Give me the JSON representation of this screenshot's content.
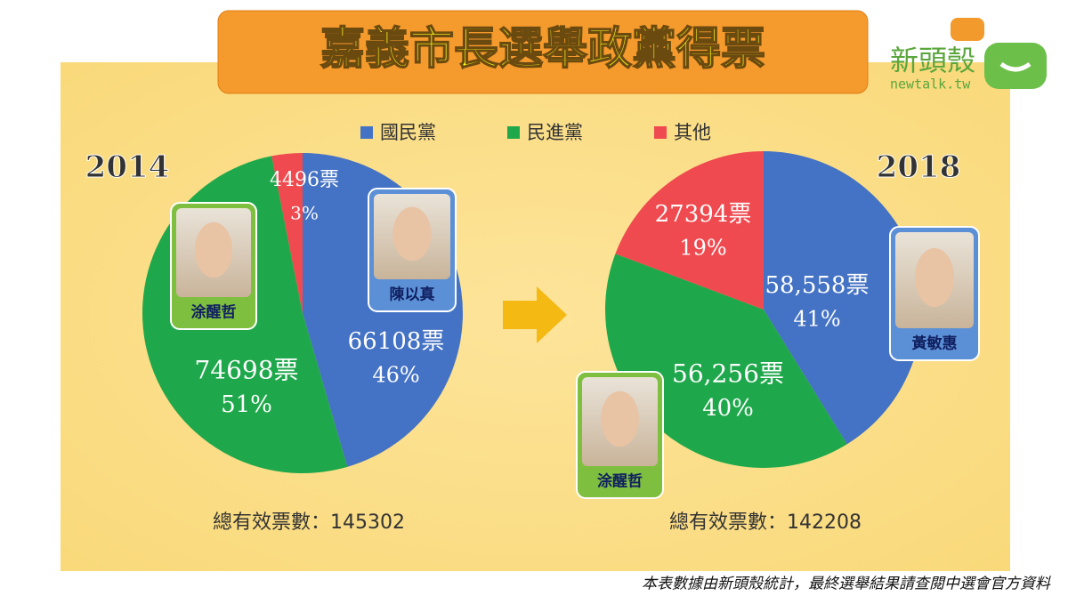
{
  "title": "嘉義市長選舉政黨得票",
  "logo": {
    "name": "新頭殼",
    "url": "newtalk.tw"
  },
  "chart_data": [
    {
      "type": "pie",
      "year": "2014",
      "categories": [
        "國民黨",
        "民進黨",
        "其他"
      ],
      "colors": [
        "#4472c4",
        "#1fa84b",
        "#ef4a4f"
      ],
      "values": [
        66108,
        74698,
        4496
      ],
      "value_labels": [
        "66108票",
        "74698票",
        "4496票"
      ],
      "shares": [
        46,
        51,
        3
      ],
      "share_labels": [
        "46%",
        "51%",
        "3%"
      ],
      "total_text": "總有效票數：145302"
    },
    {
      "type": "pie",
      "year": "2018",
      "categories": [
        "國民黨",
        "民進黨",
        "其他"
      ],
      "colors": [
        "#4472c4",
        "#1fa84b",
        "#ef4a4f"
      ],
      "values": [
        58558,
        56256,
        27394
      ],
      "value_labels": [
        "58,558票",
        "56,256票",
        "27394票"
      ],
      "shares": [
        41,
        40,
        19
      ],
      "share_labels": [
        "41%",
        "40%",
        "19%"
      ],
      "total_text": "總有效票數：142208"
    }
  ],
  "candidates": [
    "涂醒哲",
    "陳以真",
    "黃敏惠",
    "涂醒哲"
  ],
  "footnote": "本表數據由新頭殼統計，最終選舉結果請查閱中選會官方資料"
}
